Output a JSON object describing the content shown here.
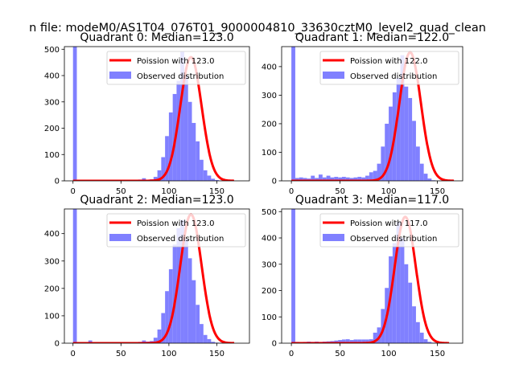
{
  "chart_data": {
    "type": "bar",
    "suptitle": "n file: modeM0/AS1T04_076T01_9000004810_33630cztM0_level2_quad_clean",
    "legend_placement": "top-right",
    "legend": {
      "line": "Poission with",
      "bars": "Observed distribution"
    },
    "colors": {
      "poisson": "#ff0000",
      "observed": "#8080ff"
    },
    "bin_width": 4,
    "panels": [
      {
        "title": "Quadrant 0: Median=123.0",
        "legend_line": "Poission with 123.0",
        "mean": 123.0,
        "poisson_peak": 470,
        "xlim": [
          -9,
          184
        ],
        "ylim": [
          0,
          510
        ],
        "xticks": [
          0,
          50,
          100,
          150
        ],
        "yticks": [
          0,
          100,
          200,
          300,
          400,
          500
        ],
        "zero_bin": 2000,
        "low_bins_start": 4,
        "low_bins": [],
        "bins_start": 60,
        "counts": [
          3,
          2,
          5,
          10,
          4,
          6,
          15,
          40,
          90,
          170,
          260,
          330,
          380,
          490,
          400,
          300,
          220,
          150,
          80,
          40,
          20,
          8,
          3,
          1
        ]
      },
      {
        "title": "Quadrant 1: Median=122.0",
        "legend_line": "Poission with 122.0",
        "mean": 122.0,
        "poisson_peak": 450,
        "xlim": [
          -10,
          176
        ],
        "ylim": [
          0,
          470
        ],
        "xticks": [
          0,
          50,
          100,
          150
        ],
        "yticks": [
          0,
          100,
          200,
          300,
          400
        ],
        "zero_bin": 2000,
        "low_bins_start": 4,
        "low_bins": [
          10,
          12,
          10,
          8,
          18,
          10,
          22,
          12,
          18,
          12,
          14,
          12,
          14,
          12,
          10,
          12,
          14
        ],
        "bins_start": 72,
        "counts": [
          12,
          18,
          30,
          35,
          60,
          120,
          200,
          260,
          310,
          360,
          440,
          330,
          290,
          210,
          120,
          60,
          25,
          8,
          2
        ]
      },
      {
        "title": "Quadrant 2: Median=123.0",
        "legend_line": "Poission with 123.0",
        "mean": 123.0,
        "poisson_peak": 470,
        "xlim": [
          -9,
          184
        ],
        "ylim": [
          0,
          490
        ],
        "xticks": [
          0,
          50,
          100,
          150
        ],
        "yticks": [
          0,
          100,
          200,
          300,
          400
        ],
        "zero_bin": 2000,
        "low_bins_start": 4,
        "low_bins": [
          0,
          0,
          0,
          10
        ],
        "bins_start": 60,
        "counts": [
          2,
          3,
          5,
          10,
          6,
          8,
          20,
          50,
          110,
          190,
          270,
          360,
          420,
          450,
          380,
          310,
          230,
          140,
          70,
          30,
          15,
          5,
          2,
          1
        ]
      },
      {
        "title": "Quadrant 3: Median=117.0",
        "legend_line": "Poission with 117.0",
        "mean": 117.0,
        "poisson_peak": 480,
        "xlim": [
          -10,
          176
        ],
        "ylim": [
          0,
          510
        ],
        "xticks": [
          0,
          50,
          100,
          150
        ],
        "yticks": [
          0,
          100,
          200,
          300,
          400,
          500
        ],
        "zero_bin": 2000,
        "low_bins_start": 4,
        "low_bins": [
          5,
          4,
          5,
          6,
          5,
          6,
          5,
          6,
          7,
          8,
          10,
          12,
          14,
          15,
          12,
          14,
          14,
          14,
          14,
          15
        ],
        "bins_start": 84,
        "counts": [
          40,
          60,
          130,
          210,
          330,
          380,
          460,
          400,
          300,
          230,
          140,
          80,
          40,
          15,
          5,
          2
        ]
      }
    ]
  }
}
